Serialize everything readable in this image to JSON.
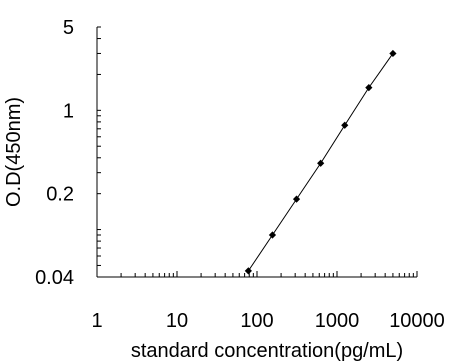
{
  "chart_data": {
    "type": "line",
    "xlabel": "standard concentration(pg/mL)",
    "ylabel": "O.D(450nm)",
    "x_scale": "log",
    "y_scale": "log",
    "xlim": [
      1,
      10000
    ],
    "ylim": [
      0.04,
      5
    ],
    "x_ticks": [
      {
        "value": 1,
        "label": "1"
      },
      {
        "value": 10,
        "label": "10"
      },
      {
        "value": 100,
        "label": "100"
      },
      {
        "value": 1000,
        "label": "1000"
      },
      {
        "value": 10000,
        "label": "10000"
      }
    ],
    "y_ticks": [
      {
        "value": 0.04,
        "label": "0.04"
      },
      {
        "value": 0.2,
        "label": "0.2"
      },
      {
        "value": 1,
        "label": "1"
      },
      {
        "value": 5,
        "label": "5"
      }
    ],
    "grid": false,
    "series": [
      {
        "x": [
          78,
          156,
          312,
          625,
          1250,
          2500,
          5000
        ],
        "y": [
          0.045,
          0.09,
          0.18,
          0.36,
          0.75,
          1.55,
          3.0
        ]
      }
    ]
  }
}
